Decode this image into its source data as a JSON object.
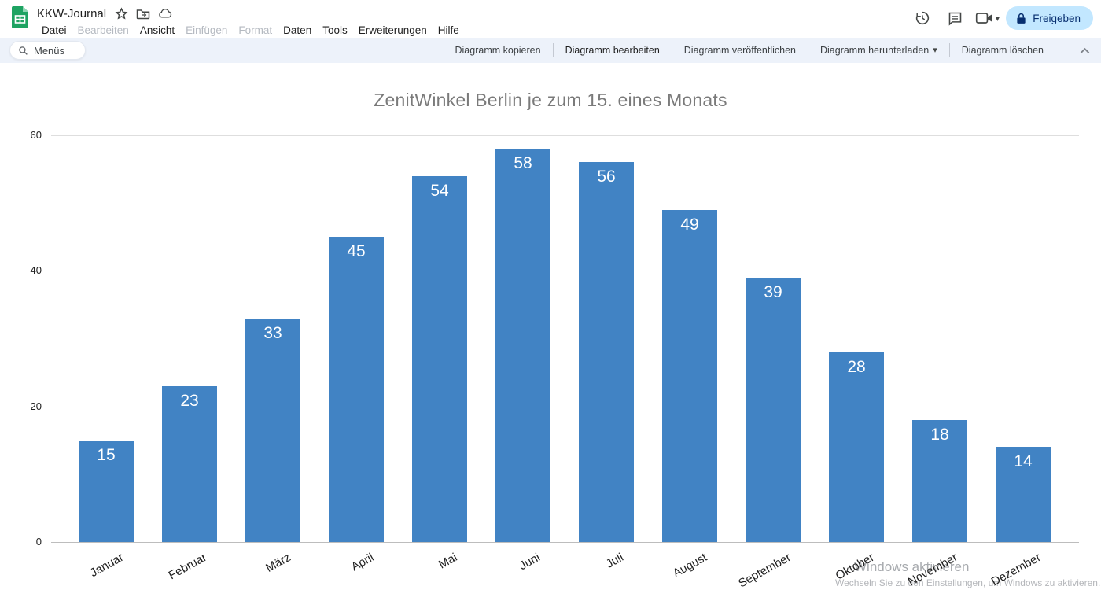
{
  "app": {
    "doc_title": "KKW-Journal",
    "search_label": "Menüs",
    "share_label": "Freigeben",
    "menus": [
      {
        "label": "Datei",
        "enabled": true
      },
      {
        "label": "Bearbeiten",
        "enabled": false
      },
      {
        "label": "Ansicht",
        "enabled": true
      },
      {
        "label": "Einfügen",
        "enabled": false
      },
      {
        "label": "Format",
        "enabled": false
      },
      {
        "label": "Daten",
        "enabled": true
      },
      {
        "label": "Tools",
        "enabled": true
      },
      {
        "label": "Erweiterungen",
        "enabled": true
      },
      {
        "label": "Hilfe",
        "enabled": true
      }
    ],
    "icons": {
      "titlebar": [
        "star-icon",
        "move-folder-icon",
        "cloud-status-icon"
      ],
      "header_right": [
        "version-history-icon",
        "comments-icon",
        "meet-video-icon",
        "dropdown-caret",
        "lock-icon"
      ],
      "dropdown_caret_glyph": "▾"
    }
  },
  "chart_toolbar": {
    "buttons": [
      {
        "label": "Diagramm kopieren",
        "emphasis": false,
        "dropdown": false
      },
      {
        "label": "Diagramm bearbeiten",
        "emphasis": true,
        "dropdown": false
      },
      {
        "label": "Diagramm veröffentlichen",
        "emphasis": false,
        "dropdown": false
      },
      {
        "label": "Diagramm herunterladen",
        "emphasis": false,
        "dropdown": true
      },
      {
        "label": "Diagramm löschen",
        "emphasis": false,
        "dropdown": false
      }
    ],
    "collapse_icon": "chevron-up-icon"
  },
  "chart_data": {
    "type": "bar",
    "title": "ZenitWinkel Berlin je zum 15. eines Monats",
    "categories": [
      "Januar",
      "Februar",
      "März",
      "April",
      "Mai",
      "Juni",
      "Juli",
      "August",
      "September",
      "Oktober",
      "November",
      "Dezember"
    ],
    "values": [
      15,
      23,
      33,
      45,
      54,
      58,
      56,
      49,
      39,
      28,
      18,
      14
    ],
    "xlabel": "",
    "ylabel": "",
    "ylim": [
      0,
      60
    ],
    "yticks": [
      0,
      20,
      40,
      60
    ],
    "grid": true,
    "legend": "none",
    "bar_color": "#4183c4",
    "value_label_color": "#ffffff",
    "title_color": "#7a7a7a"
  },
  "watermark": {
    "line1": "Windows aktivieren",
    "line2": "Wechseln Sie zu den Einstellungen, um Windows zu aktivieren."
  },
  "colors": {
    "toolbar_bg": "#edf2fa",
    "share_pill_bg": "#c2e7ff",
    "share_pill_text": "#072e6f",
    "gridline": "#dedede",
    "axis_line": "#bdbdbd",
    "sheets_green": "#1ea362"
  }
}
